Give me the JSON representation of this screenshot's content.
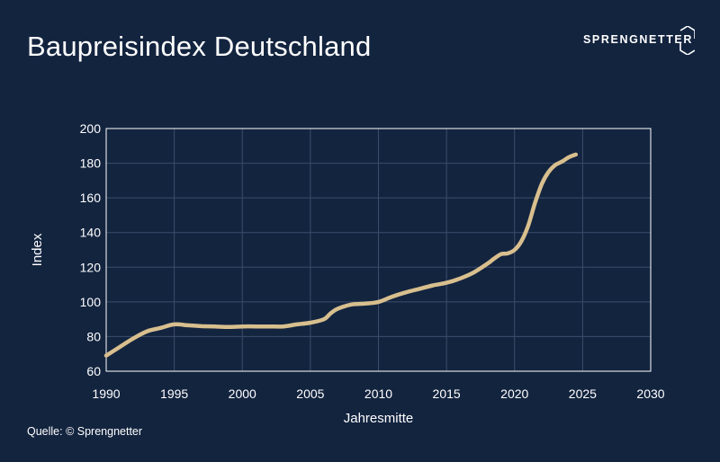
{
  "colors": {
    "background": "#13243f",
    "line": "#d8bf8e",
    "grid": "#3b4d6b",
    "frame": "#ffffff",
    "text": "#ffffff"
  },
  "header": {
    "title": "Baupreisindex Deutschland",
    "logo_text": "SPRENGNETTER"
  },
  "footer": {
    "source": "Quelle: © Sprengnetter"
  },
  "chart_data": {
    "type": "line",
    "title": "Baupreisindex Deutschland",
    "xlabel": "Jahresmitte",
    "ylabel": "Index",
    "xlim": [
      1990,
      2030
    ],
    "ylim": [
      60,
      200
    ],
    "xticks": [
      1990,
      1995,
      2000,
      2005,
      2010,
      2015,
      2020,
      2025,
      2030
    ],
    "yticks": [
      60,
      80,
      100,
      120,
      140,
      160,
      180,
      200
    ],
    "grid": true,
    "legend": "none",
    "series": [
      {
        "x": [
          1990,
          1991,
          1992,
          1993,
          1994,
          1995,
          1996,
          1997,
          1998,
          1999,
          2000,
          2001,
          2002,
          2003,
          2004,
          2005,
          2006,
          2006.5,
          2007,
          2008,
          2009,
          2010,
          2011,
          2012,
          2013,
          2014,
          2015,
          2016,
          2017,
          2018,
          2018.5,
          2019,
          2019.5,
          2020,
          2020.5,
          2021,
          2021.5,
          2022,
          2022.5,
          2023,
          2023.5,
          2024,
          2024.5
        ],
        "y": [
          69,
          74,
          79,
          83,
          85,
          87,
          86.5,
          86,
          85.8,
          85.5,
          85.8,
          85.8,
          85.8,
          85.8,
          87,
          88,
          90,
          93.5,
          96,
          98.5,
          99,
          100,
          103,
          105.5,
          107.5,
          109.5,
          111,
          113.5,
          117,
          122,
          125,
          127.5,
          128,
          130,
          135,
          144,
          157,
          168,
          175,
          179,
          181,
          183.5,
          185
        ]
      }
    ]
  }
}
